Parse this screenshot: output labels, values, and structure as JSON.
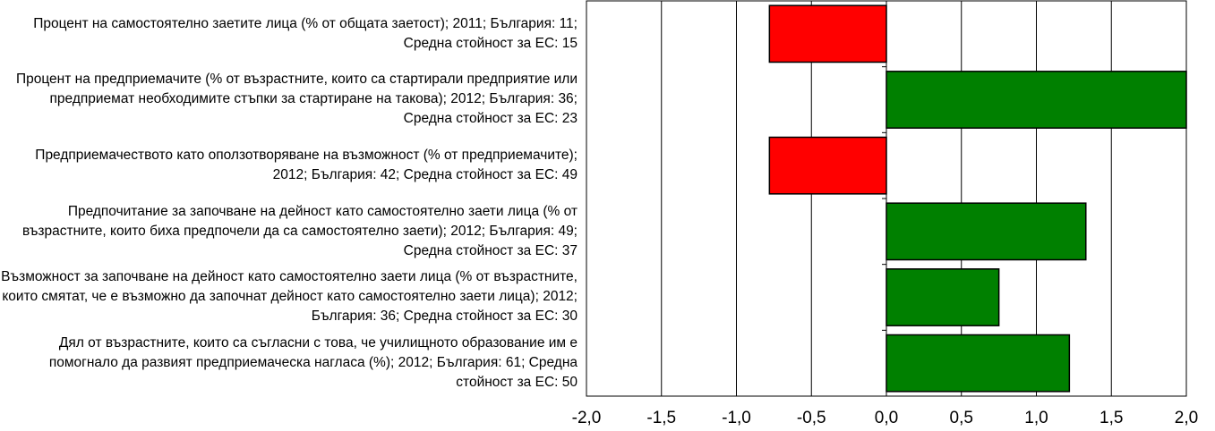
{
  "chart_data": {
    "type": "hbar",
    "categories": [
      "Процент на самостоятелно заетите лица (% от общата заетост); 2011; България: 11; Средна стойност за ЕС: 15",
      "Процент на предприемачите (% от възрастните, които са стартирали предприятие или предприемат необходимите стъпки за стартиране на такова); 2012; България: 36; Средна стойност за ЕС: 23",
      "Предприемачеството като оползотворяване на възможност (% от предприемачите); 2012; България: 42; Средна стойност за ЕС: 49",
      "Предпочитание за започване на дейност като самостоятелно заети лица (% от възрастните, които биха предпочели да са самостоятелно заети); 2012; България: 49; Средна стойност за ЕС: 37",
      "Възможност за започване на дейност като самостоятелно заети лица (% от възрастните, които смятат, че е възможно да започнат дейност като самостоятелно заети лица); 2012; България: 36; Средна стойност за ЕС: 30",
      "Дял от възрастните, които са съгласни с това, че училищното образование им е помогнало да развият предприемаческа нагласа (%); 2012; България: 61; Средна стойност за ЕС: 50"
    ],
    "values": [
      -0.78,
      2.0,
      -0.78,
      1.33,
      0.75,
      1.22
    ],
    "colors": [
      "#ff0000",
      "#008000",
      "#ff0000",
      "#008000",
      "#008000",
      "#008000"
    ],
    "xlim": [
      -2,
      2
    ],
    "xticks": [
      {
        "value": -2,
        "label": "-2,0"
      },
      {
        "value": -1.5,
        "label": "-1,5"
      },
      {
        "value": -1,
        "label": "-1,0"
      },
      {
        "value": -0.5,
        "label": "-0,5"
      },
      {
        "value": 0,
        "label": "0,0"
      },
      {
        "value": 0.5,
        "label": "0,5"
      },
      {
        "value": 1,
        "label": "1,0"
      },
      {
        "value": 1.5,
        "label": "1,5"
      },
      {
        "value": 2,
        "label": "2,0"
      }
    ],
    "grid": true
  }
}
